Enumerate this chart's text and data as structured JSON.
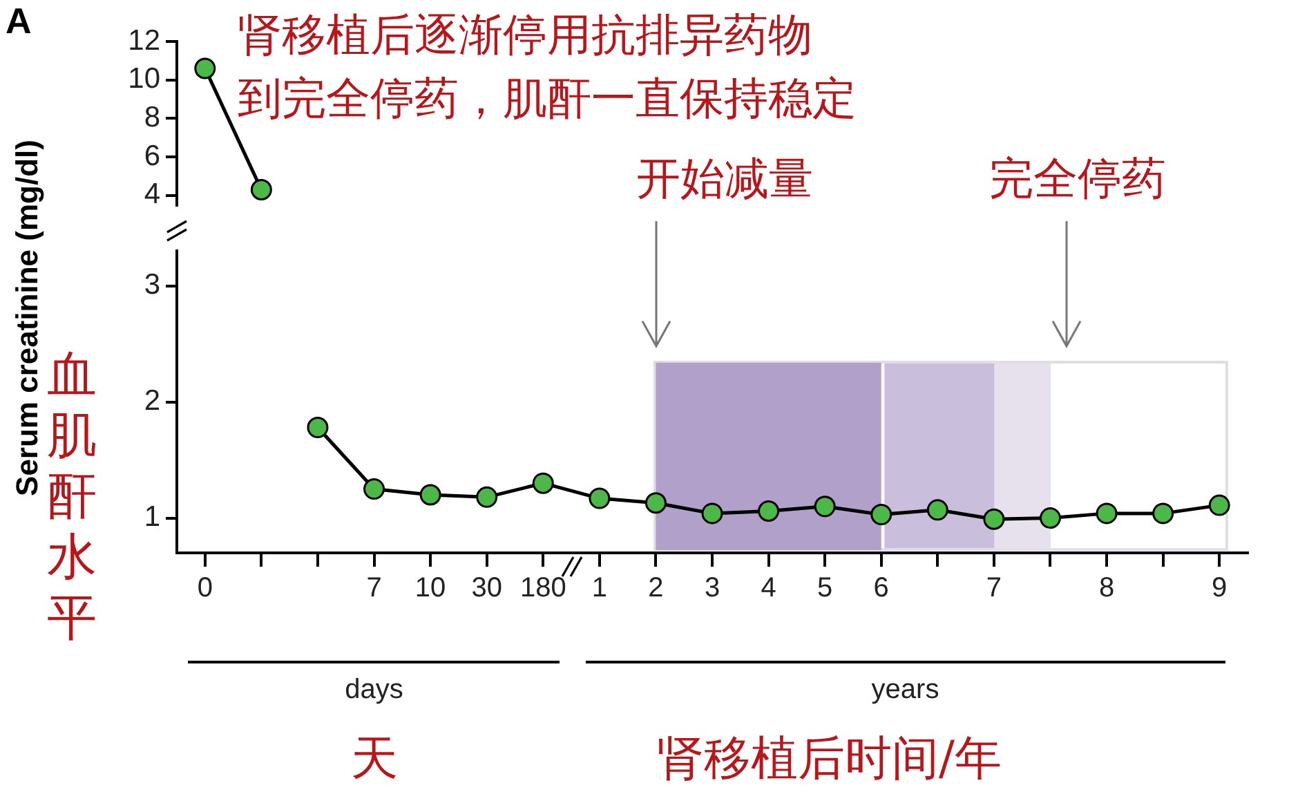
{
  "chart_data": [
    {
      "type": "line",
      "title": "肾移植后逐渐停用抗排异药物",
      "subtitle": "到完全停药，肌酐一直保持稳定",
      "annotations": [
        "A"
      ],
      "categories": [
        "0",
        null,
        null,
        "7",
        "10",
        "30",
        "180",
        "1",
        "2",
        "3",
        "4",
        "5",
        "6",
        null,
        "7",
        null,
        "8",
        null,
        "9"
      ],
      "series": [
        {
          "color": "#4cb848",
          "values": [
            10.6,
            4.3,
            null,
            null,
            null,
            null,
            null,
            null,
            null,
            null,
            null,
            null,
            null,
            null,
            null,
            null,
            null,
            null,
            null
          ]
        }
      ],
      "ylim": [
        3.5,
        12
      ],
      "yticks": [
        4,
        6,
        8,
        10,
        12
      ],
      "tick_labels": "y",
      "marker": "circle",
      "line_style": "solid",
      "grid": false,
      "legend": false
    },
    {
      "type": "line",
      "xlabel": "肾移植后时间/年",
      "ylabel": "Serum creatinine (mg/dl)",
      "annotations": [
        "days",
        "years",
        "天",
        "血肌酐水平",
        "开始减量",
        "完全停药"
      ],
      "categories": [
        "0",
        null,
        null,
        "7",
        "10",
        "30",
        "180",
        "1",
        "2",
        "3",
        "4",
        "5",
        "6",
        null,
        "7",
        null,
        "8",
        null,
        "9"
      ],
      "series": [
        {
          "color": "#4cb848",
          "values": [
            null,
            null,
            1.78,
            1.25,
            1.2,
            1.18,
            1.3,
            1.17,
            1.13,
            1.04,
            1.06,
            1.1,
            1.03,
            1.07,
            0.99,
            1.0,
            1.04,
            1.04,
            1.11
          ]
        }
      ],
      "ylim": [
        0.7,
        3.3
      ],
      "yticks": [
        1,
        2,
        3
      ],
      "bands": [
        {
          "axis": "x",
          "from": "2",
          "to": "6",
          "color": "#b1a0c9"
        }
      ],
      "marker": "circle",
      "line_style": "solid",
      "grid": false,
      "legend": false
    }
  ]
}
